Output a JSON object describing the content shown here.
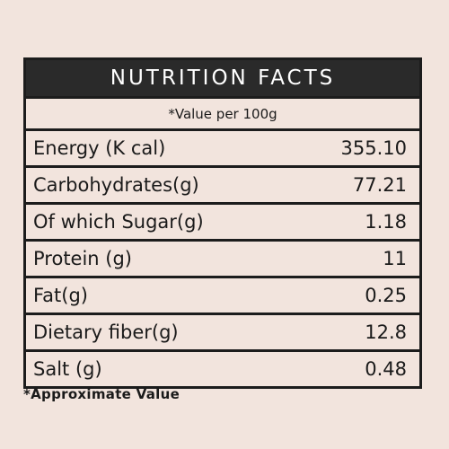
{
  "title": "NUTRITION FACTS",
  "subtitle": "*Value per 100g",
  "rows": [
    {
      "label": "Energy (K cal)",
      "value": "355.10"
    },
    {
      "label": "Carbohydrates(g)",
      "value": "77.21"
    },
    {
      "label": "Of which Sugar(g)",
      "value": "1.18"
    },
    {
      "label": "Protein (g)",
      "value": "11"
    },
    {
      "label": "Fat(g)",
      "value": "0.25"
    },
    {
      "label": "Dietary fiber(g)",
      "value": "12.8"
    },
    {
      "label": "Salt (g)",
      "value": "0.48"
    }
  ],
  "footnote": "*Approximate Value"
}
